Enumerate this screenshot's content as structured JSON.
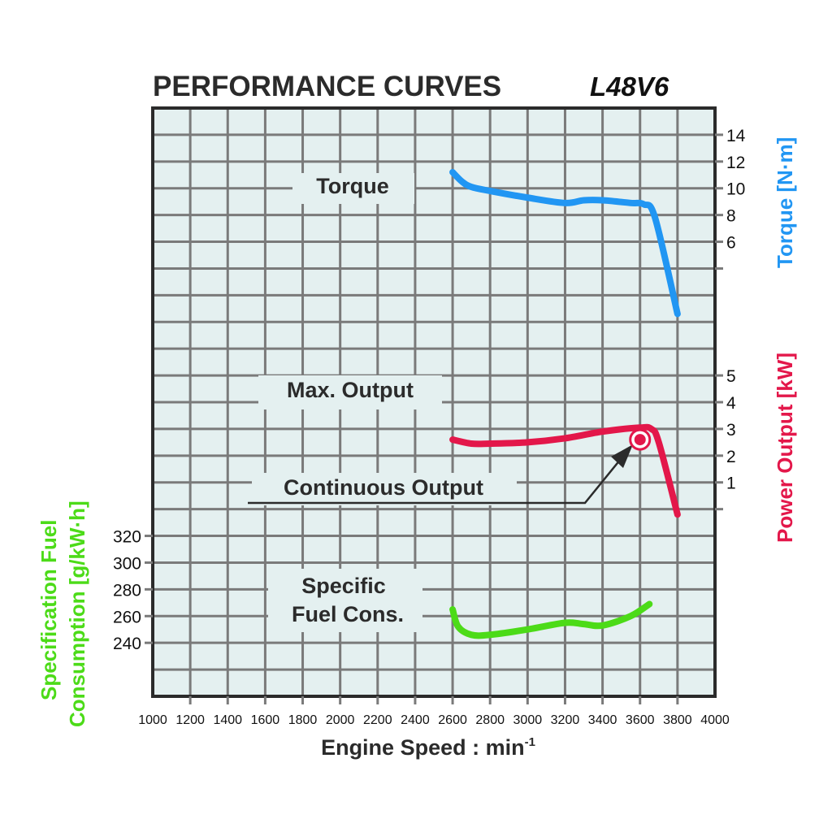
{
  "chart_data": {
    "type": "line",
    "title": "PERFORMANCE CURVES",
    "model": "L48V6",
    "xlabel": "Engine Speed : min",
    "xlabel_superscript": "-1",
    "x_ticks": [
      "1000",
      "1200",
      "1400",
      "1600",
      "1800",
      "2000",
      "2200",
      "2400",
      "2600",
      "2800",
      "3000",
      "3200",
      "3400",
      "3600",
      "3800",
      "4000"
    ],
    "xlim": [
      1000,
      4000
    ],
    "grid": true,
    "colors": {
      "torque": "#2196f3",
      "power": "#e3174a",
      "fuel": "#4cdb18",
      "plot_bg": "#e4f0f0",
      "grid": "#7a7a7a",
      "frame": "#2b2b2b",
      "text": "#2b2b2b"
    },
    "axes": {
      "torque": {
        "label": "Torque [N·m]",
        "side": "right",
        "ticks": [
          "14",
          "12",
          "10",
          "8",
          "6"
        ],
        "tick_values": [
          14,
          12,
          10,
          8,
          6
        ]
      },
      "power": {
        "label": "Power Output [kW]",
        "side": "right",
        "ticks": [
          "5",
          "4",
          "3",
          "2",
          "1"
        ],
        "tick_values": [
          5,
          4,
          3,
          2,
          1
        ]
      },
      "fuel": {
        "label_line1": "Specification Fuel",
        "label_line2": "Consumption [g/kW·h]",
        "side": "left",
        "ticks": [
          "320",
          "300",
          "280",
          "260",
          "240"
        ],
        "tick_values": [
          320,
          300,
          280,
          260,
          240
        ]
      }
    },
    "annotations": {
      "torque": "Torque",
      "max_output": "Max. Output",
      "continuous_output": "Continuous Output",
      "fuel_line1": "Specific",
      "fuel_line2": "Fuel Cons."
    },
    "series": [
      {
        "name": "Torque",
        "axis": "torque",
        "unit": "N·m",
        "x": [
          2600,
          2650,
          2700,
          2800,
          3000,
          3200,
          3300,
          3400,
          3550,
          3620,
          3680,
          3800
        ],
        "y": [
          11.2,
          10.5,
          10.1,
          9.8,
          9.3,
          8.9,
          9.1,
          9.1,
          8.9,
          8.8,
          7.8,
          0.6
        ]
      },
      {
        "name": "Max. Output",
        "axis": "power",
        "unit": "kW",
        "x": [
          2600,
          2700,
          2800,
          3000,
          3200,
          3400,
          3600,
          3660,
          3700,
          3800
        ],
        "y": [
          2.6,
          2.45,
          2.45,
          2.5,
          2.65,
          2.9,
          3.05,
          3.0,
          2.5,
          -0.2
        ]
      },
      {
        "name": "Specific Fuel Cons.",
        "axis": "fuel",
        "unit": "g/kW·h",
        "x": [
          2600,
          2630,
          2700,
          2800,
          3000,
          3200,
          3300,
          3400,
          3550,
          3650
        ],
        "y": [
          265,
          252,
          246,
          246,
          250,
          255,
          254,
          253,
          260,
          269
        ]
      }
    ],
    "continuous_output_point": {
      "x": 3600,
      "y": 2.6,
      "unit": "kW"
    }
  }
}
